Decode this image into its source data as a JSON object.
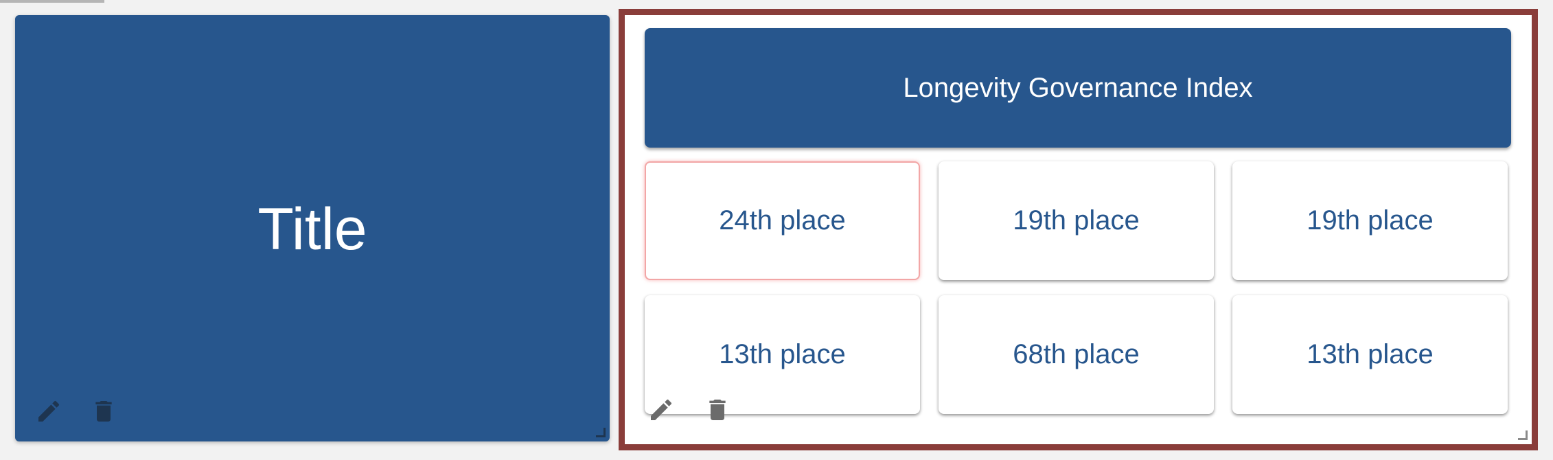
{
  "colors": {
    "primary": "#27568d",
    "selected_border": "#8a3d3a",
    "card_bg": "#ffffff",
    "icon_gray": "#6b6b6b",
    "icon_dark": "#1e3550"
  },
  "left_widget": {
    "title": "Title",
    "tools": [
      {
        "icon": "pencil-icon",
        "action": "edit"
      },
      {
        "icon": "trash-icon",
        "action": "delete"
      }
    ]
  },
  "right_widget": {
    "header": "Longevity Governance Index",
    "cells": [
      {
        "label": "24th place",
        "selected": true
      },
      {
        "label": "19th place",
        "selected": false
      },
      {
        "label": "19th place",
        "selected": false
      },
      {
        "label": "13th place",
        "selected": false
      },
      {
        "label": "68th place",
        "selected": false
      },
      {
        "label": "13th place",
        "selected": false
      }
    ],
    "tools": [
      {
        "icon": "pencil-icon",
        "action": "edit"
      },
      {
        "icon": "trash-icon",
        "action": "delete"
      }
    ]
  }
}
